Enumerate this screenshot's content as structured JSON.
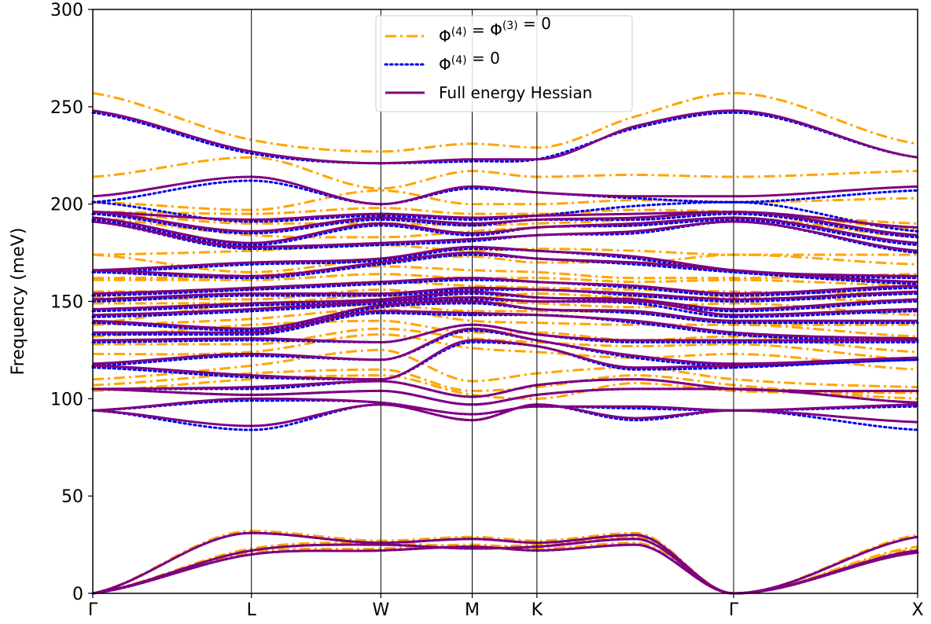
{
  "chart_data": {
    "type": "line",
    "title": "",
    "xlabel": "",
    "ylabel": "Frequency (meV)",
    "ylim": [
      0,
      300
    ],
    "xlim": [
      0,
      6.5
    ],
    "yticks": [
      0,
      50,
      100,
      150,
      200,
      250,
      300
    ],
    "high_symmetry_points": [
      {
        "label": "Γ",
        "x": 0
      },
      {
        "label": "L",
        "x": 1.25
      },
      {
        "label": "W",
        "x": 2.27
      },
      {
        "label": "M",
        "x": 2.99
      },
      {
        "label": "K",
        "x": 3.5
      },
      {
        "label": "Γ",
        "x": 5.05
      },
      {
        "label": "X",
        "x": 6.5
      }
    ],
    "grid": false,
    "legend_position": "top-center",
    "colors": {
      "full": "#800080",
      "phi4": "#0000ee",
      "phi43": "#ffa500"
    },
    "legend": [
      {
        "key": "phi43",
        "main": "Φ",
        "sup1": "(4)",
        "mid": " = Φ",
        "sup2": "(3)",
        "tail": " = 0"
      },
      {
        "key": "phi4",
        "main": "Φ",
        "sup1": "(4)",
        "mid": "",
        "sup2": "",
        "tail": " = 0"
      },
      {
        "key": "full",
        "main": "Full energy Hessian",
        "sup1": "",
        "mid": "",
        "sup2": "",
        "tail": ""
      }
    ],
    "series": [
      {
        "key": "full",
        "style": "solid",
        "bands": [
          [
            0,
            20,
            22,
            24,
            22,
            25,
            0,
            21
          ],
          [
            0,
            22,
            25,
            23,
            24,
            28,
            0,
            22
          ],
          [
            0,
            31,
            26,
            28,
            26,
            30,
            0,
            29
          ],
          [
            94,
            86,
            97,
            89,
            97,
            90,
            94,
            88
          ],
          [
            94,
            100,
            98,
            92,
            96,
            96,
            94,
            97
          ],
          [
            105,
            102,
            104,
            97,
            102,
            105,
            105,
            98
          ],
          [
            105,
            106,
            109,
            101,
            107,
            110,
            105,
            104
          ],
          [
            117,
            112,
            110,
            130,
            127,
            116,
            117,
            121
          ],
          [
            118,
            123,
            120,
            136,
            130,
            122,
            118,
            121
          ],
          [
            130,
            131,
            129,
            138,
            133,
            130,
            130,
            130
          ],
          [
            134,
            134,
            145,
            144,
            143,
            140,
            134,
            131
          ],
          [
            140,
            136,
            148,
            150,
            146,
            145,
            140,
            140
          ],
          [
            143,
            146,
            150,
            152,
            150,
            150,
            143,
            146
          ],
          [
            146,
            149,
            151,
            155,
            152,
            151,
            146,
            151
          ],
          [
            151,
            154,
            154,
            157,
            156,
            154,
            151,
            155
          ],
          [
            154,
            157,
            160,
            162,
            160,
            158,
            154,
            158
          ],
          [
            166,
            163,
            170,
            175,
            172,
            170,
            166,
            160
          ],
          [
            166,
            170,
            172,
            178,
            176,
            173,
            166,
            163
          ],
          [
            191,
            178,
            180,
            182,
            184,
            186,
            191,
            176
          ],
          [
            193,
            180,
            190,
            185,
            188,
            190,
            193,
            180
          ],
          [
            196,
            186,
            193,
            190,
            192,
            193,
            196,
            184
          ],
          [
            196,
            192,
            195,
            193,
            194,
            195,
            196,
            188
          ],
          [
            204,
            214,
            200,
            209,
            206,
            204,
            204,
            209
          ],
          [
            248,
            227,
            221,
            223,
            223,
            240,
            248,
            224
          ]
        ]
      },
      {
        "key": "phi4",
        "style": "dotted",
        "bands": [
          [
            0,
            20,
            22,
            24,
            22,
            25,
            0,
            21
          ],
          [
            0,
            22,
            25,
            23,
            24,
            28,
            0,
            22
          ],
          [
            0,
            31,
            26,
            28,
            26,
            30,
            0,
            29
          ],
          [
            94,
            84,
            97,
            89,
            97,
            89,
            94,
            84
          ],
          [
            94,
            99,
            98,
            92,
            96,
            95,
            94,
            96
          ],
          [
            105,
            102,
            104,
            97,
            102,
            105,
            105,
            98
          ],
          [
            105,
            105,
            109,
            101,
            107,
            110,
            105,
            104
          ],
          [
            116,
            111,
            110,
            129,
            127,
            115,
            116,
            120
          ],
          [
            117,
            122,
            120,
            135,
            130,
            121,
            117,
            120
          ],
          [
            129,
            130,
            129,
            138,
            133,
            129,
            129,
            129
          ],
          [
            133,
            133,
            144,
            143,
            143,
            139,
            133,
            130
          ],
          [
            139,
            135,
            147,
            149,
            146,
            144,
            139,
            139
          ],
          [
            142,
            145,
            149,
            151,
            150,
            149,
            142,
            145
          ],
          [
            145,
            148,
            150,
            154,
            152,
            150,
            145,
            150
          ],
          [
            150,
            153,
            153,
            156,
            156,
            153,
            150,
            154
          ],
          [
            153,
            156,
            159,
            161,
            160,
            157,
            153,
            157
          ],
          [
            165,
            162,
            169,
            174,
            172,
            169,
            165,
            159
          ],
          [
            165,
            169,
            171,
            177,
            176,
            172,
            165,
            162
          ],
          [
            191,
            177,
            179,
            181,
            184,
            185,
            191,
            175
          ],
          [
            192,
            179,
            189,
            184,
            188,
            189,
            192,
            179
          ],
          [
            195,
            185,
            192,
            189,
            192,
            192,
            195,
            183
          ],
          [
            201,
            191,
            194,
            192,
            194,
            199,
            201,
            186
          ],
          [
            201,
            212,
            200,
            208,
            206,
            203,
            201,
            207
          ],
          [
            247,
            226,
            221,
            222,
            223,
            239,
            247,
            224
          ]
        ]
      },
      {
        "key": "phi43",
        "style": "dashdot",
        "bands": [
          [
            0,
            21,
            23,
            25,
            23,
            26,
            0,
            23
          ],
          [
            0,
            23,
            26,
            24,
            25,
            29,
            0,
            24
          ],
          [
            0,
            32,
            27,
            29,
            27,
            31,
            0,
            30
          ],
          [
            104,
            110,
            112,
            102,
            100,
            108,
            104,
            103
          ],
          [
            107,
            113,
            115,
            104,
            106,
            112,
            107,
            100
          ],
          [
            110,
            117,
            125,
            109,
            113,
            116,
            110,
            106
          ],
          [
            123,
            124,
            133,
            126,
            124,
            121,
            123,
            115
          ],
          [
            128,
            128,
            136,
            131,
            129,
            127,
            128,
            120
          ],
          [
            132,
            138,
            140,
            134,
            134,
            130,
            132,
            124
          ],
          [
            138,
            141,
            146,
            140,
            139,
            138,
            138,
            132
          ],
          [
            139,
            148,
            148,
            145,
            145,
            144,
            139,
            138
          ],
          [
            149,
            149,
            153,
            150,
            149,
            147,
            149,
            143
          ],
          [
            152,
            151,
            156,
            152,
            154,
            152,
            152,
            150
          ],
          [
            155,
            156,
            160,
            158,
            157,
            156,
            155,
            154
          ],
          [
            161,
            161,
            164,
            162,
            162,
            160,
            161,
            158
          ],
          [
            162,
            163,
            168,
            166,
            165,
            162,
            162,
            164
          ],
          [
            174,
            165,
            172,
            173,
            170,
            170,
            174,
            169
          ],
          [
            174,
            176,
            179,
            176,
            177,
            176,
            174,
            174
          ],
          [
            193,
            184,
            183,
            186,
            188,
            189,
            193,
            183
          ],
          [
            196,
            190,
            190,
            189,
            190,
            192,
            196,
            187
          ],
          [
            196,
            195,
            198,
            195,
            195,
            197,
            196,
            190
          ],
          [
            201,
            197,
            207,
            200,
            200,
            202,
            201,
            203
          ],
          [
            214,
            224,
            208,
            217,
            214,
            215,
            214,
            217
          ],
          [
            257,
            233,
            227,
            231,
            229,
            245,
            257,
            231
          ]
        ]
      }
    ]
  }
}
